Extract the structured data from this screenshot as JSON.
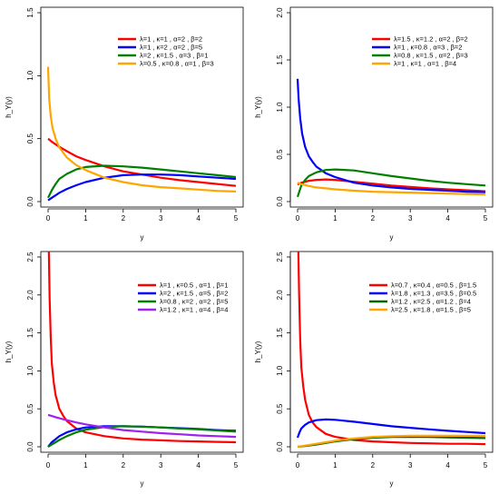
{
  "figure": {
    "panels_layout": "2x2"
  },
  "chart_data": [
    {
      "type": "line",
      "xlabel": "y",
      "ylabel": "h_Y(y)",
      "xlim": [
        0,
        5
      ],
      "ylim": [
        0,
        1.5
      ],
      "x_ticks": [
        "0",
        "1",
        "2",
        "3",
        "4",
        "5"
      ],
      "y_ticks": [
        "0.0",
        "0.5",
        "1.0",
        "1.5"
      ],
      "legend_position": "top-right",
      "series": [
        {
          "name": "λ=1 , κ=1 , α=2 , β=2",
          "color": "#ff0000",
          "x": [
            0,
            0.1,
            0.2,
            0.3,
            0.5,
            0.75,
            1,
            1.5,
            2,
            2.5,
            3,
            3.5,
            4,
            4.5,
            5
          ],
          "y": [
            0.5,
            0.475,
            0.455,
            0.435,
            0.4,
            0.36,
            0.33,
            0.28,
            0.24,
            0.215,
            0.19,
            0.17,
            0.155,
            0.14,
            0.125
          ]
        },
        {
          "name": "λ=1 , κ=2 , α=2 , β=5",
          "color": "#0000ff",
          "x": [
            0,
            0.1,
            0.2,
            0.3,
            0.5,
            0.75,
            1,
            1.5,
            2,
            2.5,
            3,
            3.5,
            4,
            4.5,
            5
          ],
          "y": [
            0.01,
            0.03,
            0.05,
            0.07,
            0.1,
            0.13,
            0.155,
            0.19,
            0.21,
            0.215,
            0.215,
            0.21,
            0.2,
            0.19,
            0.18
          ]
        },
        {
          "name": "λ=2 , κ=1.5 , α=3 , β=1",
          "color": "#008000",
          "x": [
            0,
            0.1,
            0.2,
            0.3,
            0.5,
            0.75,
            1,
            1.5,
            2,
            2.5,
            3,
            3.5,
            4,
            4.5,
            5
          ],
          "y": [
            0.03,
            0.09,
            0.14,
            0.18,
            0.22,
            0.255,
            0.275,
            0.285,
            0.28,
            0.27,
            0.255,
            0.24,
            0.225,
            0.21,
            0.195
          ]
        },
        {
          "name": "λ=0.5 , κ=0.8 , α=1 , β=3",
          "color": "#ffa500",
          "x": [
            0,
            0.03,
            0.07,
            0.12,
            0.2,
            0.3,
            0.5,
            0.75,
            1,
            1.5,
            2,
            2.5,
            3,
            3.5,
            4,
            4.5,
            5
          ],
          "y": [
            1.07,
            0.82,
            0.68,
            0.58,
            0.5,
            0.43,
            0.35,
            0.29,
            0.25,
            0.19,
            0.155,
            0.13,
            0.115,
            0.105,
            0.095,
            0.085,
            0.08
          ]
        }
      ]
    },
    {
      "type": "line",
      "xlabel": "y",
      "ylabel": "h_Y(y)",
      "xlim": [
        0,
        5
      ],
      "ylim": [
        0,
        2.0
      ],
      "x_ticks": [
        "0",
        "1",
        "2",
        "3",
        "4",
        "5"
      ],
      "y_ticks": [
        "0.0",
        "0.5",
        "1.0",
        "1.5",
        "2.0"
      ],
      "legend_position": "top-right",
      "series": [
        {
          "name": "λ=1.5 , κ=1.2 , α=2 , β=2",
          "color": "#ff0000",
          "x": [
            0,
            0.1,
            0.2,
            0.3,
            0.5,
            0.75,
            1,
            1.5,
            2,
            2.5,
            3,
            3.5,
            4,
            4.5,
            5
          ],
          "y": [
            0.18,
            0.2,
            0.21,
            0.22,
            0.23,
            0.235,
            0.23,
            0.21,
            0.19,
            0.17,
            0.155,
            0.14,
            0.13,
            0.12,
            0.11
          ]
        },
        {
          "name": "λ=1 , κ=0.8 , α=3 , β=2",
          "color": "#0000ff",
          "x": [
            0,
            0.03,
            0.07,
            0.12,
            0.2,
            0.3,
            0.4,
            0.5,
            0.75,
            1,
            1.5,
            2,
            2.5,
            3,
            3.5,
            4,
            4.5,
            5
          ],
          "y": [
            1.3,
            1.08,
            0.88,
            0.72,
            0.58,
            0.48,
            0.42,
            0.37,
            0.3,
            0.26,
            0.2,
            0.17,
            0.15,
            0.135,
            0.125,
            0.115,
            0.105,
            0.1
          ]
        },
        {
          "name": "λ=0.8 , κ=1.5 , α=2 , β=3",
          "color": "#008000",
          "x": [
            0,
            0.1,
            0.2,
            0.3,
            0.5,
            0.75,
            1,
            1.5,
            2,
            2.5,
            3,
            3.5,
            4,
            4.5,
            5
          ],
          "y": [
            0.05,
            0.17,
            0.23,
            0.27,
            0.31,
            0.335,
            0.34,
            0.33,
            0.3,
            0.27,
            0.245,
            0.22,
            0.2,
            0.185,
            0.17
          ]
        },
        {
          "name": "λ=1 , κ=1 , α=1 , β=4",
          "color": "#ffa500",
          "x": [
            0,
            0.1,
            0.2,
            0.3,
            0.5,
            0.75,
            1,
            1.5,
            2,
            2.5,
            3,
            3.5,
            4,
            4.5,
            5
          ],
          "y": [
            0.2,
            0.185,
            0.175,
            0.165,
            0.15,
            0.14,
            0.13,
            0.115,
            0.105,
            0.1,
            0.095,
            0.09,
            0.085,
            0.08,
            0.075
          ]
        }
      ]
    },
    {
      "type": "line",
      "xlabel": "y",
      "ylabel": "h_Y(y)",
      "xlim": [
        0,
        5
      ],
      "ylim": [
        0,
        2.5
      ],
      "x_ticks": [
        "0",
        "1",
        "2",
        "3",
        "4",
        "5"
      ],
      "y_ticks": [
        "0.0",
        "0.5",
        "1.0",
        "1.5",
        "2.0",
        "2.5"
      ],
      "legend_position": "top-right",
      "series": [
        {
          "name": "λ=1 , κ=0.5 , α=1 , β=1",
          "color": "#ff0000",
          "x": [
            0.02,
            0.04,
            0.07,
            0.1,
            0.15,
            0.2,
            0.3,
            0.4,
            0.5,
            0.75,
            1,
            1.5,
            2,
            2.5,
            3,
            3.5,
            4,
            4.5,
            5
          ],
          "y": [
            2.6,
            1.95,
            1.45,
            1.1,
            0.85,
            0.68,
            0.5,
            0.41,
            0.34,
            0.24,
            0.19,
            0.14,
            0.11,
            0.095,
            0.085,
            0.075,
            0.07,
            0.065,
            0.06
          ]
        },
        {
          "name": "λ=2 , κ=1.5 , α=5 , β=2",
          "color": "#0000ff",
          "x": [
            0,
            0.1,
            0.2,
            0.3,
            0.5,
            0.75,
            1,
            1.5,
            2,
            2.5,
            3,
            3.5,
            4,
            4.5,
            5
          ],
          "y": [
            0.0,
            0.06,
            0.1,
            0.14,
            0.19,
            0.23,
            0.255,
            0.27,
            0.27,
            0.265,
            0.255,
            0.245,
            0.235,
            0.22,
            0.21
          ]
        },
        {
          "name": "λ=0.8 , κ=2 , α=2 , β=5",
          "color": "#008000",
          "x": [
            0,
            0.1,
            0.2,
            0.3,
            0.5,
            0.75,
            1,
            1.5,
            2,
            2.5,
            3,
            3.5,
            4,
            4.5,
            5
          ],
          "y": [
            0.0,
            0.03,
            0.06,
            0.09,
            0.14,
            0.19,
            0.225,
            0.26,
            0.27,
            0.265,
            0.255,
            0.24,
            0.23,
            0.215,
            0.2
          ]
        },
        {
          "name": "λ=1.2 , κ=1 , α=4 , β=4",
          "color": "#a020f0",
          "x": [
            0,
            0.1,
            0.2,
            0.3,
            0.5,
            0.75,
            1,
            1.5,
            2,
            2.5,
            3,
            3.5,
            4,
            4.5,
            5
          ],
          "y": [
            0.42,
            0.405,
            0.39,
            0.375,
            0.35,
            0.32,
            0.295,
            0.255,
            0.22,
            0.2,
            0.18,
            0.165,
            0.15,
            0.14,
            0.13
          ]
        }
      ]
    },
    {
      "type": "line",
      "xlabel": "y",
      "ylabel": "h_Y(y)",
      "xlim": [
        0,
        5
      ],
      "ylim": [
        0,
        2.5
      ],
      "x_ticks": [
        "0",
        "1",
        "2",
        "3",
        "4",
        "5"
      ],
      "y_ticks": [
        "0.0",
        "0.5",
        "1.0",
        "1.5",
        "2.0",
        "2.5"
      ],
      "legend_position": "top-right",
      "series": [
        {
          "name": "λ=0.7 , κ=0.4 , α=0.5 , β=1.5",
          "color": "#ff0000",
          "x": [
            0.02,
            0.04,
            0.07,
            0.1,
            0.15,
            0.2,
            0.3,
            0.4,
            0.5,
            0.75,
            1,
            1.5,
            2,
            2.5,
            3,
            3.5,
            4,
            4.5,
            5
          ],
          "y": [
            2.6,
            2.0,
            1.4,
            1.05,
            0.8,
            0.62,
            0.42,
            0.32,
            0.26,
            0.17,
            0.13,
            0.09,
            0.07,
            0.06,
            0.05,
            0.045,
            0.04,
            0.04,
            0.035
          ]
        },
        {
          "name": "λ=1.8 , κ=1.3 , α=3.5 , β=0.5",
          "color": "#0000ff",
          "x": [
            0,
            0.05,
            0.1,
            0.2,
            0.3,
            0.5,
            0.75,
            1,
            1.5,
            2,
            2.5,
            3,
            3.5,
            4,
            4.5,
            5
          ],
          "y": [
            0.12,
            0.19,
            0.24,
            0.29,
            0.32,
            0.35,
            0.36,
            0.355,
            0.33,
            0.3,
            0.27,
            0.25,
            0.23,
            0.21,
            0.195,
            0.18
          ]
        },
        {
          "name": "λ=1.2 , κ=2.5 , α=1.2 , β=4",
          "color": "#006400",
          "x": [
            0,
            0.2,
            0.5,
            0.75,
            1,
            1.5,
            2,
            2.5,
            3,
            3.5,
            4,
            4.5,
            5
          ],
          "y": [
            0.0,
            0.01,
            0.03,
            0.05,
            0.07,
            0.1,
            0.12,
            0.13,
            0.13,
            0.13,
            0.125,
            0.12,
            0.115
          ]
        },
        {
          "name": "λ=2.5 , κ=1.8 , α=1.5 , β=5",
          "color": "#ffa500",
          "x": [
            0,
            0.2,
            0.5,
            0.75,
            1,
            1.5,
            2,
            2.5,
            3,
            3.5,
            4,
            4.5,
            5
          ],
          "y": [
            0.0,
            0.015,
            0.04,
            0.06,
            0.08,
            0.11,
            0.13,
            0.14,
            0.145,
            0.145,
            0.145,
            0.145,
            0.145
          ]
        }
      ]
    }
  ]
}
